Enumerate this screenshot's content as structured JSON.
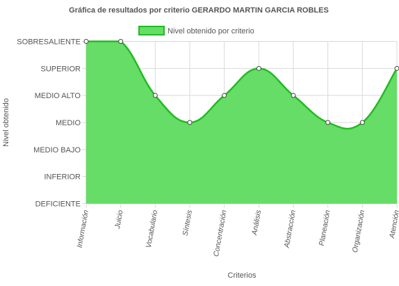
{
  "chart_data": {
    "type": "area",
    "title": "Gráfica de resultados por criterio GERARDO MARTIN GARCIA ROBLES",
    "xlabel": "Criterios",
    "ylabel": "Nivel obtenido",
    "y_levels": [
      "DEFICIENTE",
      "INFERIOR",
      "MEDIO BAJO",
      "MEDIO",
      "MEDIO ALTO",
      "SUPERIOR",
      "SOBRESALIENTE"
    ],
    "ylim": [
      0,
      6
    ],
    "categories": [
      "Información",
      "Juicio",
      "Vocabulario",
      "Síntesis",
      "Concentración",
      "Análisis",
      "Abstracción",
      "Planeación",
      "Organización",
      "Atención"
    ],
    "series": [
      {
        "name": "Nivel obtenido por criterio",
        "values": [
          6,
          6,
          4,
          3,
          4,
          5,
          4,
          3,
          3,
          5
        ]
      }
    ],
    "legend_position": "top",
    "grid": true,
    "colors": {
      "fill": "#66dd66",
      "line": "#22bb22",
      "point_fill": "#ffffff",
      "point_stroke": "#444444",
      "grid": "#d9d9d9",
      "text": "#555555",
      "title": "#555555"
    }
  }
}
